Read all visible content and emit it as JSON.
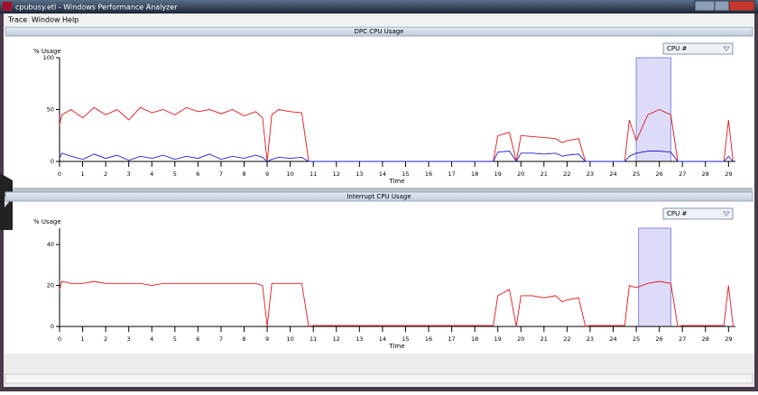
{
  "window": {
    "title": "cpubusy.etl - Windows Performance Analyzer",
    "menu": [
      "Trace",
      "Window",
      "Help"
    ]
  },
  "chart_data": [
    {
      "type": "line",
      "title": "DPC CPU Usage",
      "y_label": "% Usage",
      "x_label": "Time",
      "dropdown": "CPU #",
      "x": [
        0,
        0.1,
        0.5,
        1,
        1.5,
        2,
        2.5,
        3,
        3.5,
        4,
        4.5,
        5,
        5.5,
        6,
        6.5,
        7,
        7.5,
        8,
        8.5,
        8.8,
        9,
        9.2,
        9.5,
        10,
        10.5,
        10.8,
        11,
        12,
        13,
        14,
        15,
        16,
        17,
        18,
        18.8,
        19,
        19.5,
        19.8,
        20,
        20.5,
        21,
        21.5,
        21.8,
        22,
        22.5,
        22.8,
        23,
        24,
        24.5,
        24.7,
        25,
        25.5,
        26,
        26.5,
        26.8,
        27,
        28,
        28.8,
        29,
        29.2
      ],
      "series": [
        {
          "color": "#e8141c",
          "values": [
            35,
            45,
            50,
            42,
            52,
            45,
            50,
            40,
            52,
            47,
            50,
            45,
            52,
            48,
            50,
            46,
            50,
            44,
            48,
            42,
            0,
            45,
            50,
            48,
            47,
            0,
            0,
            0,
            0,
            0,
            0,
            0,
            0,
            0,
            0,
            25,
            28,
            0,
            25,
            24,
            23,
            22,
            18,
            20,
            22,
            0,
            0,
            0,
            0,
            40,
            20,
            45,
            50,
            45,
            0,
            0,
            0,
            0,
            40,
            0
          ]
        },
        {
          "color": "#2020d0",
          "values": [
            3,
            8,
            5,
            2,
            7,
            3,
            6,
            1,
            5,
            3,
            6,
            2,
            5,
            3,
            7,
            2,
            5,
            3,
            6,
            4,
            0,
            2,
            4,
            3,
            4,
            0,
            0,
            0,
            0,
            0,
            0,
            0,
            0,
            0,
            0,
            9,
            10,
            0,
            8,
            8,
            7,
            8,
            5,
            6,
            7,
            0,
            0,
            0,
            0,
            5,
            8,
            10,
            10,
            9,
            0,
            0,
            0,
            0,
            5,
            0
          ]
        }
      ],
      "selection": [
        25,
        26.5
      ],
      "xlim": [
        0,
        29.3
      ],
      "xticks": [
        0,
        1,
        2,
        3,
        4,
        5,
        6,
        7,
        8,
        9,
        10,
        11,
        12,
        13,
        14,
        15,
        16,
        17,
        18,
        19,
        20,
        21,
        22,
        23,
        24,
        25,
        26,
        27,
        28,
        29
      ],
      "ylim": [
        0,
        100
      ],
      "yticks": [
        0,
        50,
        100
      ]
    },
    {
      "type": "line",
      "title": "Interrupt CPU Usage",
      "y_label": "% Usage",
      "x_label": "Time",
      "dropdown": "CPU #",
      "x": [
        0,
        0.1,
        0.5,
        1,
        1.5,
        2,
        2.5,
        3,
        3.5,
        4,
        4.5,
        5,
        5.5,
        6,
        6.5,
        7,
        7.5,
        8,
        8.5,
        8.8,
        9,
        9.2,
        9.5,
        10,
        10.5,
        10.8,
        11,
        12,
        13,
        14,
        15,
        16,
        17,
        18,
        18.8,
        19,
        19.5,
        19.8,
        20,
        20.5,
        21,
        21.5,
        21.8,
        22,
        22.5,
        22.8,
        23,
        24,
        24.5,
        24.7,
        25,
        25.5,
        26,
        26.5,
        26.8,
        27,
        28,
        28.8,
        29,
        29.2
      ],
      "series": [
        {
          "color": "#e8141c",
          "values": [
            18,
            22,
            21,
            21,
            22,
            21,
            21,
            21,
            21,
            20,
            21,
            21,
            21,
            21,
            21,
            21,
            21,
            21,
            21,
            20,
            0,
            21,
            21,
            21,
            21,
            0,
            0.5,
            0.5,
            0.5,
            0.5,
            0.5,
            0.5,
            0.5,
            0.5,
            0.5,
            15,
            18,
            0,
            15,
            15,
            14,
            15,
            12,
            13,
            14,
            0,
            0.5,
            0.5,
            0.5,
            20,
            19,
            21,
            22,
            21,
            0,
            0.5,
            0.5,
            0.5,
            20,
            0
          ]
        }
      ],
      "selection": [
        25.1,
        26.5
      ],
      "xlim": [
        0,
        29.3
      ],
      "xticks": [
        0,
        1,
        2,
        3,
        4,
        5,
        6,
        7,
        8,
        9,
        10,
        11,
        12,
        13,
        14,
        15,
        16,
        17,
        18,
        19,
        20,
        21,
        22,
        23,
        24,
        25,
        26,
        27,
        28,
        29
      ],
      "ylim": [
        0,
        48
      ],
      "yticks": [
        0,
        20,
        40
      ]
    }
  ]
}
